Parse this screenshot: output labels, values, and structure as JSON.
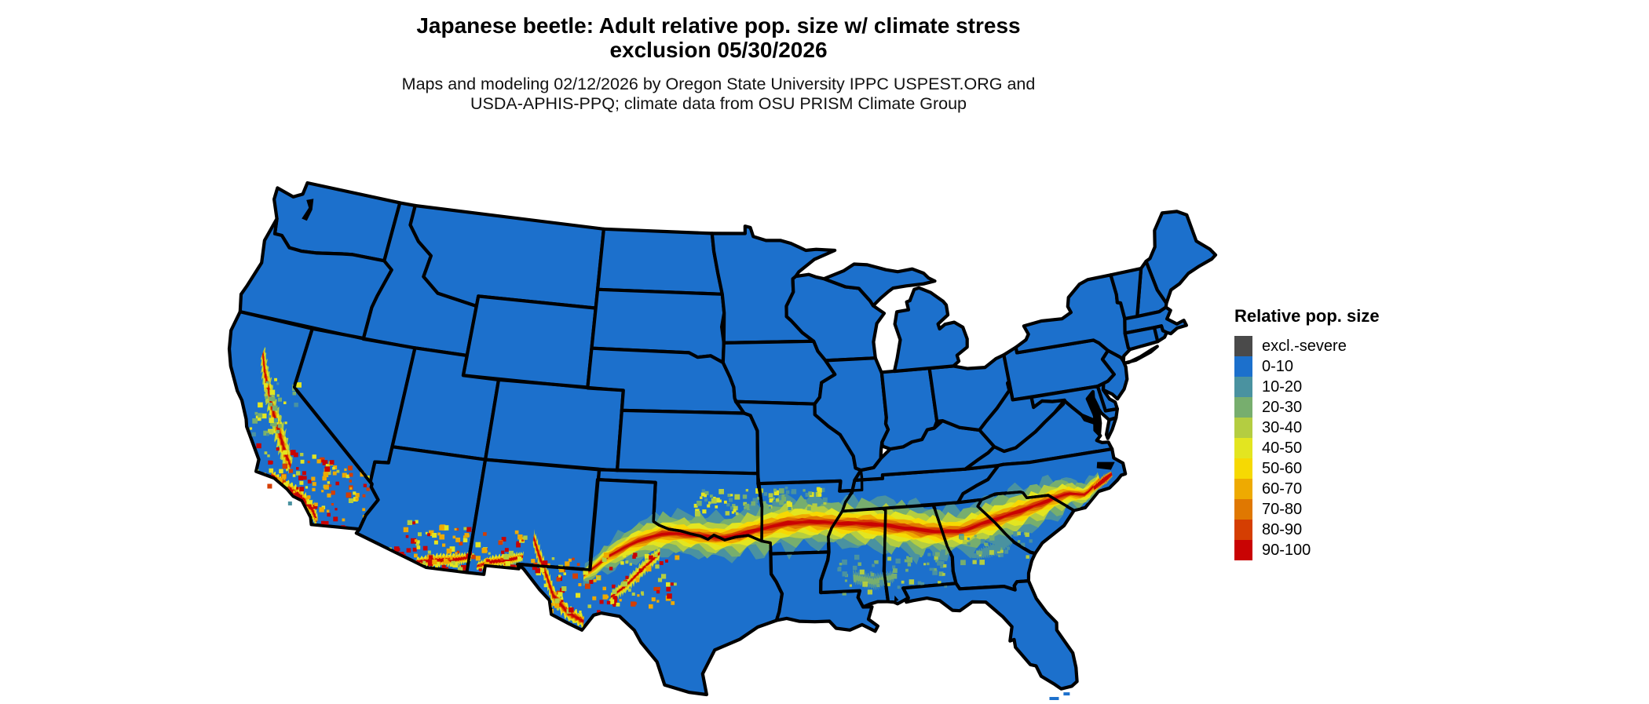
{
  "title": {
    "line1": "Japanese beetle: Adult relative pop. size w/ climate stress",
    "line2": "exclusion 05/30/2026"
  },
  "subtitle": {
    "line1": "Maps and modeling 02/12/2026 by Oregon State University IPPC USPEST.ORG and",
    "line2": "USDA-APHIS-PPQ; climate data from OSU PRISM Climate Group"
  },
  "legend": {
    "title": "Relative pop. size",
    "items": [
      {
        "label": "excl.-severe",
        "color": "#4a4a4a"
      },
      {
        "label": "0-10",
        "color": "#1c70cc"
      },
      {
        "label": "10-20",
        "color": "#4a92a0"
      },
      {
        "label": "20-30",
        "color": "#77ae6e"
      },
      {
        "label": "30-40",
        "color": "#b4cd41"
      },
      {
        "label": "40-50",
        "color": "#e3e520"
      },
      {
        "label": "50-60",
        "color": "#f6d903"
      },
      {
        "label": "60-70",
        "color": "#eeaa01"
      },
      {
        "label": "70-80",
        "color": "#e07801"
      },
      {
        "label": "80-90",
        "color": "#d53e02"
      },
      {
        "label": "90-100",
        "color": "#c90303"
      }
    ]
  },
  "map": {
    "land_fill": "#1c70cc",
    "border_color": "#000000",
    "water_color": "#ffffff"
  }
}
